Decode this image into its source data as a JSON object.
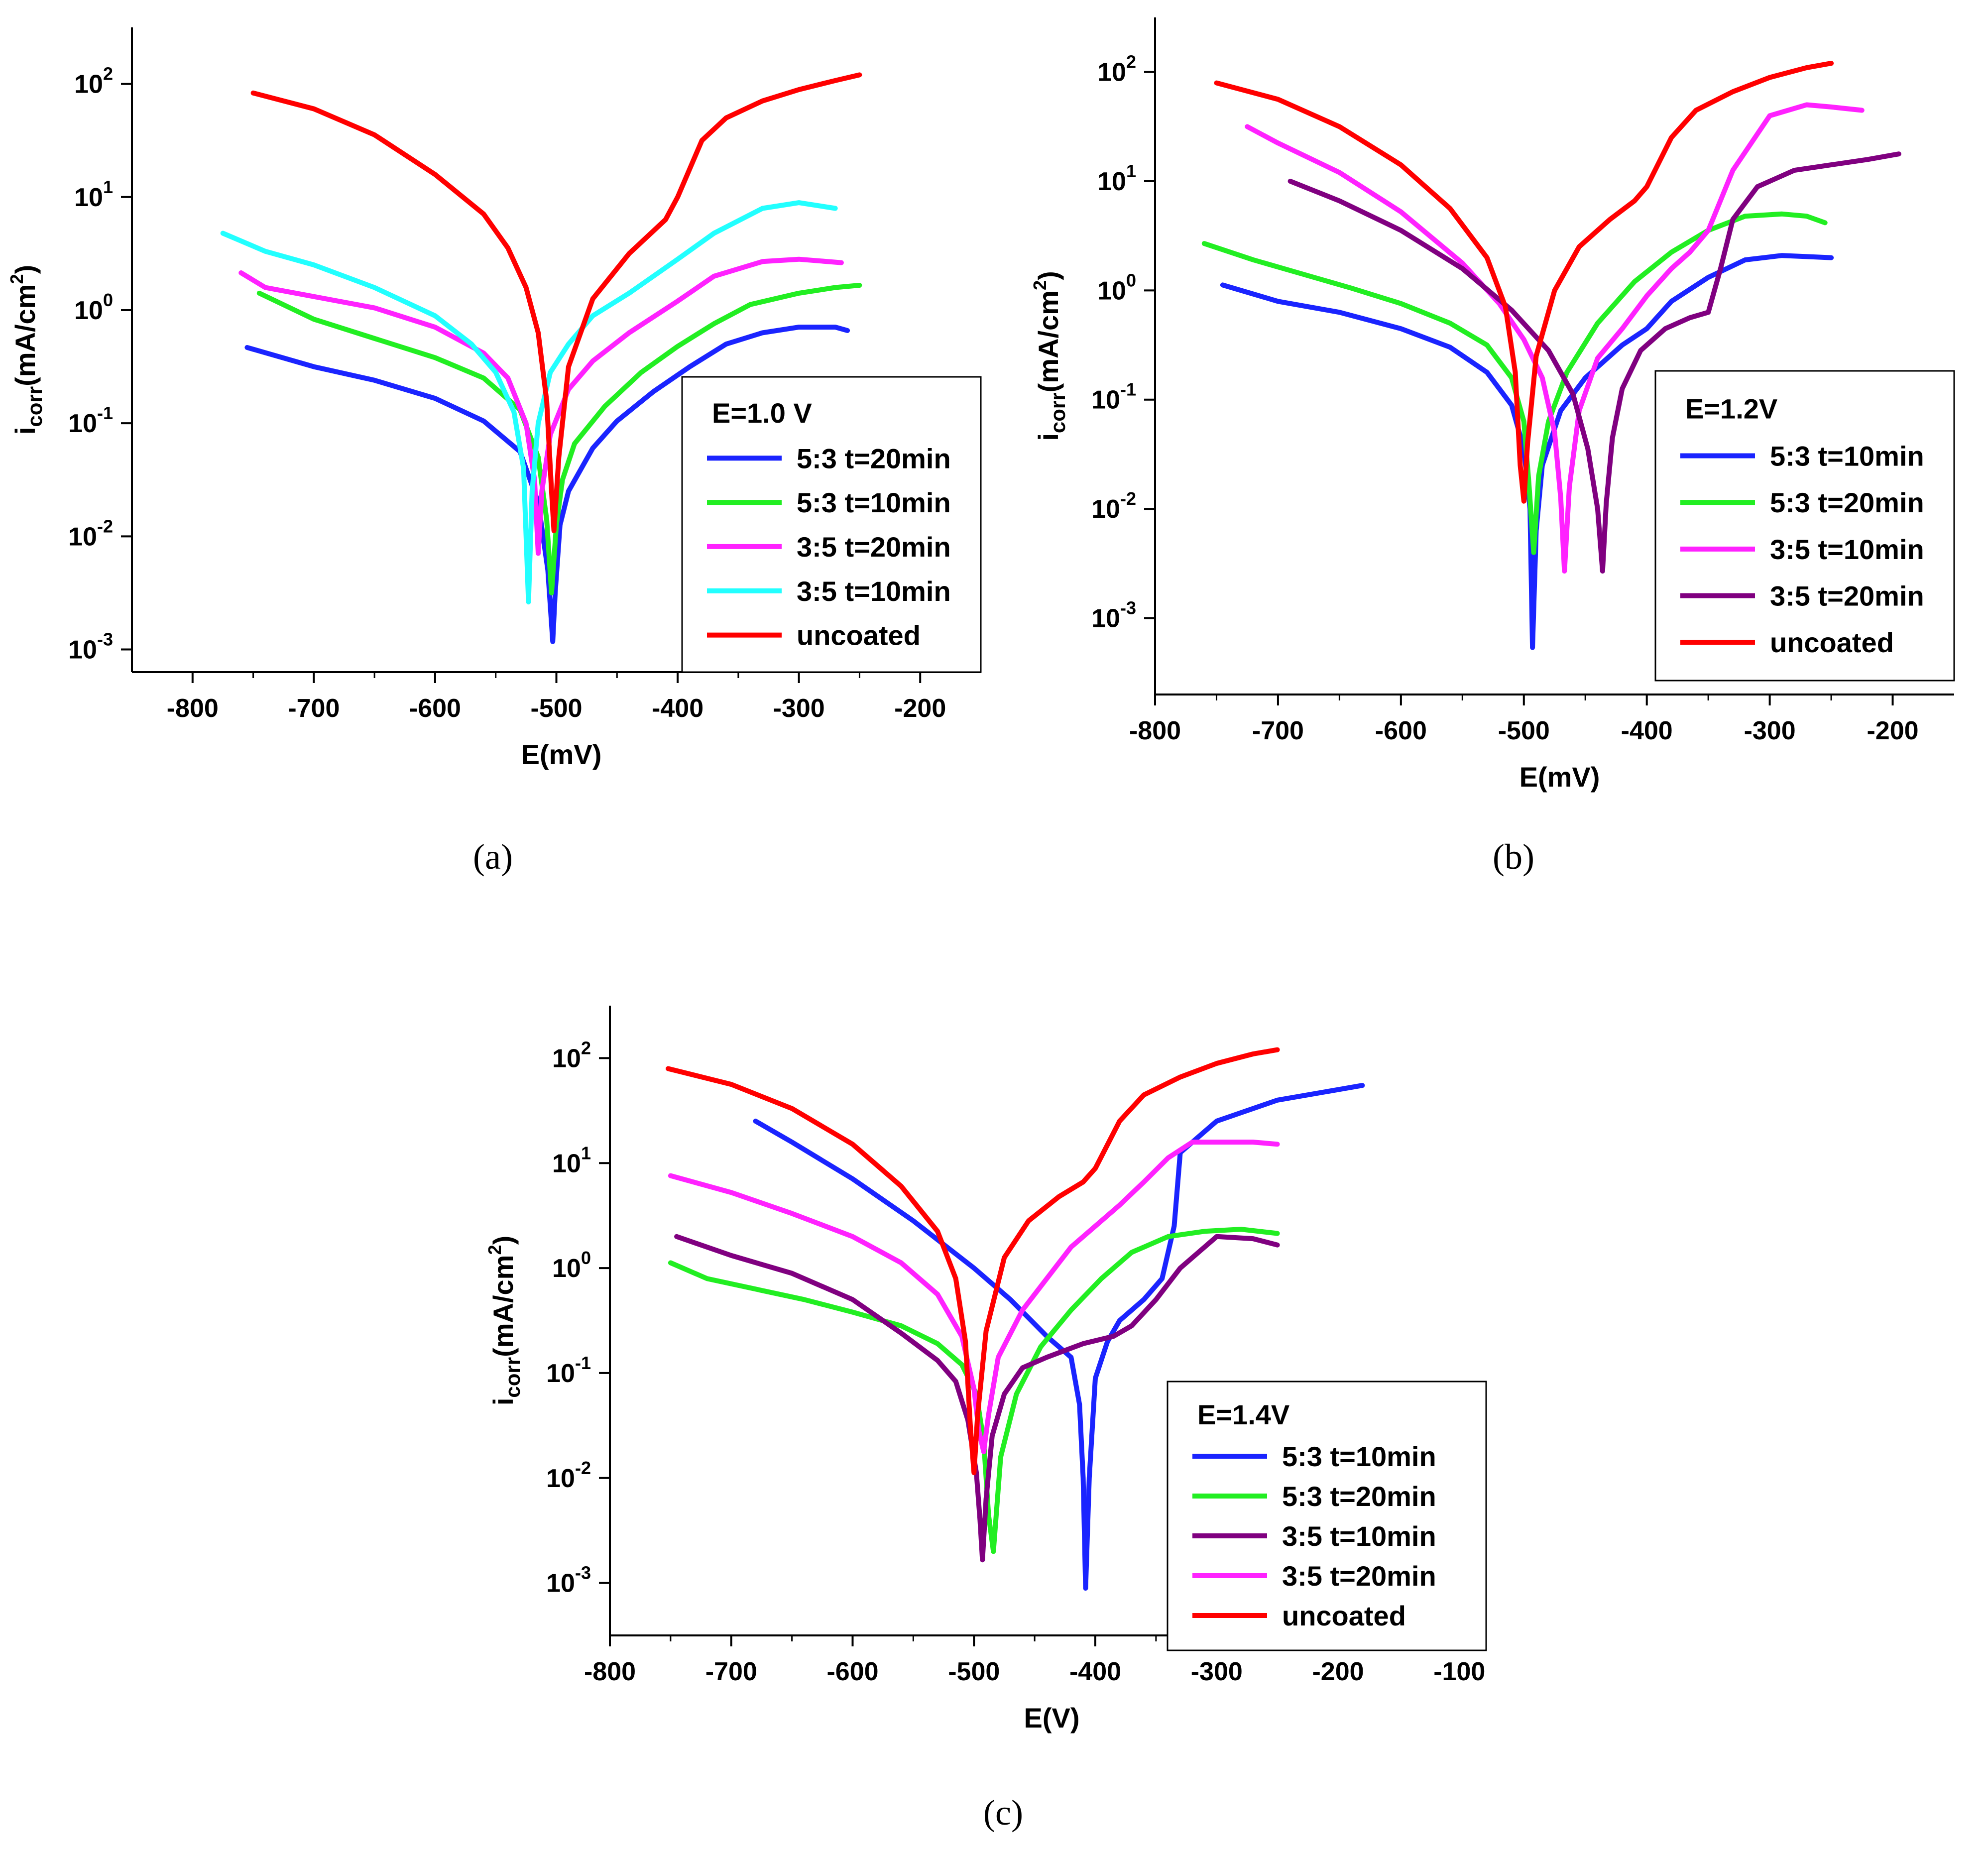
{
  "chart_data": [
    {
      "panel": "a",
      "caption": "(a)",
      "type": "line",
      "yscale": "log",
      "xlim": [
        -850,
        -150
      ],
      "ylim_exp": [
        -3.2,
        2.5
      ],
      "xticks": [
        -800,
        -700,
        -600,
        -500,
        -400,
        -300,
        -200
      ],
      "xtick_labels": [
        "-800",
        "-700",
        "-600",
        "-500",
        "-400",
        "-300",
        "-200"
      ],
      "yticks_exp": [
        -3,
        -2,
        -1,
        0,
        1,
        2
      ],
      "ytick_labels": [
        {
          "base": "10",
          "exp": "-3"
        },
        {
          "base": "10",
          "exp": "-2"
        },
        {
          "base": "10",
          "exp": "-1"
        },
        {
          "base": "10",
          "exp": "0"
        },
        {
          "base": "10",
          "exp": "1"
        },
        {
          "base": "10",
          "exp": "2"
        }
      ],
      "xlabel": "E(mV)",
      "ylabel": {
        "main": "i",
        "sub": "corr",
        "unit": "(mA/cm",
        "sup": "2",
        "close": ")"
      },
      "legend_title": "E=1.0 V",
      "legend_placement": "bottom-right",
      "series": [
        {
          "name": "5:3 t=20min",
          "color": "#1a24ff",
          "x": [
            -755,
            -700,
            -650,
            -600,
            -560,
            -530,
            -515,
            -507,
            -503,
            -501,
            -497,
            -490,
            -470,
            -450,
            -420,
            -390,
            -360,
            -330,
            -300,
            -270,
            -260
          ],
          "y_exp": [
            -0.33,
            -0.5,
            -0.62,
            -0.78,
            -0.98,
            -1.25,
            -1.7,
            -2.3,
            -2.93,
            -2.5,
            -1.9,
            -1.6,
            -1.22,
            -0.98,
            -0.72,
            -0.5,
            -0.3,
            -0.2,
            -0.15,
            -0.15,
            -0.18
          ]
        },
        {
          "name": "5:3 t=10min",
          "color": "#22ee22",
          "x": [
            -745,
            -700,
            -650,
            -600,
            -560,
            -530,
            -515,
            -508,
            -504,
            -500,
            -495,
            -485,
            -460,
            -430,
            -400,
            -370,
            -340,
            -300,
            -270,
            -250
          ],
          "y_exp": [
            0.15,
            -0.08,
            -0.25,
            -0.42,
            -0.6,
            -0.88,
            -1.3,
            -1.85,
            -2.5,
            -1.9,
            -1.5,
            -1.18,
            -0.85,
            -0.55,
            -0.32,
            -0.12,
            0.05,
            0.15,
            0.2,
            0.22
          ]
        },
        {
          "name": "3:5 t=20min",
          "color": "#ff22ff",
          "x": [
            -760,
            -740,
            -700,
            -650,
            -600,
            -560,
            -540,
            -525,
            -518,
            -515,
            -512,
            -505,
            -490,
            -470,
            -440,
            -400,
            -370,
            -330,
            -300,
            -265
          ],
          "y_exp": [
            0.33,
            0.2,
            0.12,
            0.02,
            -0.15,
            -0.38,
            -0.6,
            -1.0,
            -1.5,
            -2.15,
            -1.6,
            -1.1,
            -0.7,
            -0.45,
            -0.2,
            0.08,
            0.3,
            0.43,
            0.45,
            0.42
          ]
        },
        {
          "name": "3:5 t=10min",
          "color": "#22ffff",
          "x": [
            -775,
            -740,
            -700,
            -650,
            -600,
            -570,
            -550,
            -535,
            -527,
            -523,
            -520,
            -515,
            -505,
            -490,
            -470,
            -440,
            -400,
            -370,
            -330,
            -300,
            -270
          ],
          "y_exp": [
            0.68,
            0.52,
            0.4,
            0.2,
            -0.05,
            -0.3,
            -0.55,
            -0.9,
            -1.4,
            -2.58,
            -1.6,
            -1.0,
            -0.55,
            -0.3,
            -0.05,
            0.15,
            0.45,
            0.68,
            0.9,
            0.95,
            0.9
          ]
        },
        {
          "name": "uncoated",
          "color": "#ff0000",
          "x": [
            -750,
            -700,
            -650,
            -600,
            -560,
            -540,
            -525,
            -515,
            -508,
            -504,
            -502,
            -498,
            -490,
            -470,
            -440,
            -410,
            -400,
            -380,
            -360,
            -330,
            -300,
            -270,
            -250
          ],
          "y_exp": [
            1.92,
            1.78,
            1.55,
            1.2,
            0.85,
            0.55,
            0.2,
            -0.2,
            -0.8,
            -1.6,
            -1.95,
            -1.3,
            -0.5,
            0.1,
            0.5,
            0.8,
            1.0,
            1.5,
            1.7,
            1.85,
            1.95,
            2.03,
            2.08
          ]
        }
      ]
    },
    {
      "panel": "b",
      "caption": "(b)",
      "type": "line",
      "yscale": "log",
      "xlim": [
        -800,
        -150
      ],
      "ylim_exp": [
        -3.7,
        2.5
      ],
      "xticks": [
        -800,
        -700,
        -600,
        -500,
        -400,
        -300,
        -200
      ],
      "xtick_labels": [
        "-800",
        "-700",
        "-600",
        "-500",
        "-400",
        "-300",
        "-200"
      ],
      "yticks_exp": [
        -3,
        -2,
        -1,
        0,
        1,
        2
      ],
      "ytick_labels": [
        {
          "base": "10",
          "exp": "-3"
        },
        {
          "base": "10",
          "exp": "-2"
        },
        {
          "base": "10",
          "exp": "-1"
        },
        {
          "base": "10",
          "exp": "0"
        },
        {
          "base": "10",
          "exp": "1"
        },
        {
          "base": "10",
          "exp": "2"
        }
      ],
      "xlabel": "E(mV)",
      "ylabel": {
        "main": "i",
        "sub": "corr",
        "unit": "(mA/cm",
        "sup": "2",
        "close": ")"
      },
      "legend_title": "E=1.2V",
      "legend_placement": "bottom-right",
      "series": [
        {
          "name": "5:3 t=10min",
          "color": "#1a24ff",
          "x": [
            -745,
            -700,
            -650,
            -600,
            -560,
            -530,
            -510,
            -500,
            -495,
            -493,
            -490,
            -485,
            -470,
            -450,
            -420,
            -400,
            -380,
            -350,
            -320,
            -290,
            -270,
            -250
          ],
          "y_exp": [
            0.05,
            -0.1,
            -0.2,
            -0.35,
            -0.52,
            -0.75,
            -1.05,
            -1.45,
            -2.0,
            -3.27,
            -2.2,
            -1.6,
            -1.1,
            -0.8,
            -0.5,
            -0.35,
            -0.1,
            0.12,
            0.28,
            0.32,
            0.31,
            0.3
          ]
        },
        {
          "name": "5:3 t=20min",
          "color": "#22ee22",
          "x": [
            -760,
            -720,
            -680,
            -640,
            -600,
            -560,
            -530,
            -510,
            -500,
            -496,
            -492,
            -488,
            -480,
            -465,
            -440,
            -410,
            -380,
            -350,
            -320,
            -290,
            -270,
            -255
          ],
          "y_exp": [
            0.43,
            0.28,
            0.15,
            0.02,
            -0.12,
            -0.3,
            -0.5,
            -0.8,
            -1.2,
            -1.75,
            -2.4,
            -1.7,
            -1.2,
            -0.75,
            -0.3,
            0.08,
            0.35,
            0.55,
            0.68,
            0.7,
            0.68,
            0.62
          ]
        },
        {
          "name": "3:5 t=10min",
          "color": "#ff22ff",
          "x": [
            -725,
            -700,
            -650,
            -600,
            -550,
            -520,
            -500,
            -485,
            -475,
            -470,
            -467,
            -463,
            -455,
            -440,
            -420,
            -400,
            -380,
            -365,
            -350,
            -330,
            -300,
            -270,
            -250,
            -225
          ],
          "y_exp": [
            1.5,
            1.35,
            1.08,
            0.72,
            0.25,
            -0.12,
            -0.45,
            -0.8,
            -1.3,
            -1.9,
            -2.57,
            -1.8,
            -1.1,
            -0.62,
            -0.35,
            -0.05,
            0.2,
            0.35,
            0.55,
            1.1,
            1.6,
            1.7,
            1.68,
            1.65
          ]
        },
        {
          "name": "3:5 t=20min",
          "color": "#800080",
          "x": [
            -690,
            -650,
            -600,
            -550,
            -510,
            -480,
            -460,
            -448,
            -440,
            -436,
            -433,
            -428,
            -420,
            -405,
            -385,
            -365,
            -350,
            -340,
            -330,
            -310,
            -280,
            -250,
            -220,
            -195
          ],
          "y_exp": [
            1.0,
            0.82,
            0.55,
            0.2,
            -0.18,
            -0.55,
            -0.95,
            -1.45,
            -2.0,
            -2.57,
            -1.95,
            -1.35,
            -0.9,
            -0.55,
            -0.35,
            -0.25,
            -0.2,
            0.2,
            0.65,
            0.95,
            1.1,
            1.15,
            1.2,
            1.25
          ]
        },
        {
          "name": "uncoated",
          "color": "#ff0000",
          "x": [
            -750,
            -700,
            -650,
            -600,
            -560,
            -530,
            -515,
            -507,
            -503,
            -500,
            -497,
            -490,
            -475,
            -455,
            -430,
            -410,
            -400,
            -380,
            -360,
            -330,
            -300,
            -270,
            -250
          ],
          "y_exp": [
            1.9,
            1.75,
            1.5,
            1.15,
            0.75,
            0.3,
            -0.15,
            -0.75,
            -1.6,
            -1.93,
            -1.4,
            -0.6,
            0.0,
            0.4,
            0.65,
            0.82,
            0.95,
            1.4,
            1.65,
            1.82,
            1.95,
            2.04,
            2.08
          ]
        }
      ]
    },
    {
      "panel": "c",
      "caption": "(c)",
      "type": "line",
      "yscale": "log",
      "xlim": [
        -800,
        -80
      ],
      "ylim_exp": [
        -3.5,
        2.5
      ],
      "xticks": [
        -800,
        -700,
        -600,
        -500,
        -400,
        -300,
        -200,
        -100
      ],
      "xtick_labels": [
        "-800",
        "-700",
        "-600",
        "-500",
        "-400",
        "-300",
        "-200",
        "-100"
      ],
      "yticks_exp": [
        -3,
        -2,
        -1,
        0,
        1,
        2
      ],
      "ytick_labels": [
        {
          "base": "10",
          "exp": "-3"
        },
        {
          "base": "10",
          "exp": "-2"
        },
        {
          "base": "10",
          "exp": "-1"
        },
        {
          "base": "10",
          "exp": "0"
        },
        {
          "base": "10",
          "exp": "1"
        },
        {
          "base": "10",
          "exp": "2"
        }
      ],
      "xlabel": "E(V)",
      "ylabel": {
        "main": "i",
        "sub": "corr",
        "unit": "(mA/cm",
        "sup": "2",
        "close": ")"
      },
      "legend_title": "E=1.4V",
      "legend_placement": "bottom-right",
      "series": [
        {
          "name": "5:3 t=10min",
          "color": "#1a24ff",
          "x": [
            -680,
            -650,
            -600,
            -550,
            -500,
            -470,
            -440,
            -420,
            -413,
            -410,
            -408,
            -405,
            -400,
            -390,
            -380,
            -360,
            -345,
            -335,
            -330,
            -300,
            -250,
            -200,
            -180
          ],
          "y_exp": [
            1.4,
            1.2,
            0.85,
            0.45,
            0.0,
            -0.3,
            -0.65,
            -0.85,
            -1.3,
            -2.0,
            -3.05,
            -2.0,
            -1.05,
            -0.7,
            -0.5,
            -0.3,
            -0.1,
            0.4,
            1.1,
            1.4,
            1.6,
            1.7,
            1.74
          ]
        },
        {
          "name": "5:3 t=20min",
          "color": "#22ee22",
          "x": [
            -750,
            -720,
            -680,
            -640,
            -600,
            -560,
            -530,
            -510,
            -498,
            -492,
            -488,
            -484,
            -478,
            -465,
            -445,
            -420,
            -395,
            -370,
            -340,
            -310,
            -280,
            -250
          ],
          "y_exp": [
            0.05,
            -0.1,
            -0.2,
            -0.3,
            -0.42,
            -0.55,
            -0.72,
            -0.92,
            -1.2,
            -1.65,
            -2.35,
            -2.7,
            -1.8,
            -1.2,
            -0.75,
            -0.4,
            -0.1,
            0.15,
            0.3,
            0.35,
            0.37,
            0.33
          ]
        },
        {
          "name": "3:5 t=10min",
          "color": "#800080",
          "x": [
            -745,
            -700,
            -650,
            -600,
            -560,
            -530,
            -515,
            -505,
            -498,
            -495,
            -493,
            -490,
            -485,
            -475,
            -460,
            -440,
            -410,
            -385,
            -370,
            -350,
            -330,
            -300,
            -270,
            -250
          ],
          "y_exp": [
            0.3,
            0.12,
            -0.05,
            -0.3,
            -0.62,
            -0.88,
            -1.08,
            -1.45,
            -1.95,
            -2.4,
            -2.78,
            -2.2,
            -1.6,
            -1.2,
            -0.95,
            -0.85,
            -0.72,
            -0.65,
            -0.55,
            -0.3,
            0.0,
            0.3,
            0.28,
            0.22
          ]
        },
        {
          "name": "3:5 t=20min",
          "color": "#ff22ff",
          "x": [
            -750,
            -700,
            -650,
            -600,
            -560,
            -530,
            -510,
            -500,
            -496,
            -492,
            -488,
            -480,
            -460,
            -440,
            -420,
            -400,
            -380,
            -360,
            -340,
            -320,
            -300,
            -270,
            -250
          ],
          "y_exp": [
            0.88,
            0.72,
            0.52,
            0.3,
            0.05,
            -0.25,
            -0.65,
            -1.15,
            -1.55,
            -1.75,
            -1.4,
            -0.85,
            -0.4,
            -0.1,
            0.2,
            0.4,
            0.6,
            0.82,
            1.05,
            1.2,
            1.2,
            1.2,
            1.18
          ]
        },
        {
          "name": "uncoated",
          "color": "#ff0000",
          "x": [
            -752,
            -700,
            -650,
            -600,
            -560,
            -530,
            -515,
            -507,
            -503,
            -500,
            -497,
            -490,
            -475,
            -455,
            -430,
            -410,
            -400,
            -380,
            -360,
            -330,
            -300,
            -270,
            -250
          ],
          "y_exp": [
            1.9,
            1.75,
            1.52,
            1.18,
            0.78,
            0.35,
            -0.1,
            -0.7,
            -1.5,
            -1.95,
            -1.4,
            -0.6,
            0.1,
            0.45,
            0.68,
            0.82,
            0.95,
            1.4,
            1.65,
            1.82,
            1.95,
            2.04,
            2.08
          ]
        }
      ]
    }
  ]
}
